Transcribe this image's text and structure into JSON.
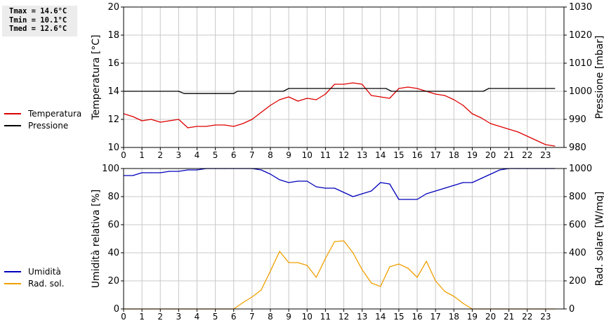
{
  "stats": {
    "tmax": "Tmax = 14.6°C",
    "tmin": "Tmin = 10.1°C",
    "tmed": "Tmed = 12.6°C"
  },
  "legend_top": [
    {
      "label": "Temperatura",
      "color": "#dd0000"
    },
    {
      "label": "Pressione",
      "color": "#000000"
    }
  ],
  "legend_bottom": [
    {
      "label": "Umidità",
      "color": "#0000bb"
    },
    {
      "label": "Rad. sol.",
      "color": "#f0a000"
    }
  ],
  "colors": {
    "grid": "#c8c8c8",
    "axis": "#000000"
  },
  "chart_data": [
    {
      "type": "line",
      "xlabel": "",
      "ylabel": "Temperatura [°C]",
      "y2label": "Pressione [mbar]",
      "xlim": [
        0,
        24
      ],
      "ylim": [
        10,
        20
      ],
      "y2lim": [
        980,
        1030
      ],
      "xticks": [
        "0",
        "1",
        "2",
        "3",
        "4",
        "5",
        "6",
        "7",
        "8",
        "9",
        "10",
        "11",
        "12",
        "13",
        "14",
        "15",
        "16",
        "17",
        "18",
        "19",
        "20",
        "21",
        "22",
        "23"
      ],
      "yticks": [
        "10",
        "12",
        "14",
        "16",
        "18",
        "20"
      ],
      "y2ticks": [
        "980",
        "990",
        "1000",
        "1010",
        "1020",
        "1030"
      ],
      "grid": true,
      "legend": "left",
      "series": [
        {
          "name": "Temperatura",
          "axis": "left",
          "color": "#dd0000",
          "points": [
            [
              0,
              12.4
            ],
            [
              0.5,
              12.2
            ],
            [
              1,
              11.9
            ],
            [
              1.5,
              12.0
            ],
            [
              2,
              11.8
            ],
            [
              2.5,
              11.9
            ],
            [
              3,
              12.0
            ],
            [
              3.5,
              11.4
            ],
            [
              4,
              11.5
            ],
            [
              4.5,
              11.5
            ],
            [
              5,
              11.6
            ],
            [
              5.5,
              11.6
            ],
            [
              6,
              11.5
            ],
            [
              6.5,
              11.7
            ],
            [
              7,
              12.0
            ],
            [
              7.5,
              12.5
            ],
            [
              8,
              13.0
            ],
            [
              8.5,
              13.4
            ],
            [
              9,
              13.6
            ],
            [
              9.5,
              13.3
            ],
            [
              10,
              13.5
            ],
            [
              10.5,
              13.4
            ],
            [
              11,
              13.8
            ],
            [
              11.5,
              14.5
            ],
            [
              12,
              14.5
            ],
            [
              12.5,
              14.6
            ],
            [
              13,
              14.5
            ],
            [
              13.5,
              13.7
            ],
            [
              14,
              13.6
            ],
            [
              14.5,
              13.5
            ],
            [
              15,
              14.2
            ],
            [
              15.5,
              14.3
            ],
            [
              16,
              14.2
            ],
            [
              16.5,
              14.0
            ],
            [
              17,
              13.8
            ],
            [
              17.5,
              13.7
            ],
            [
              18,
              13.4
            ],
            [
              18.5,
              13.0
            ],
            [
              19,
              12.4
            ],
            [
              19.5,
              12.1
            ],
            [
              20,
              11.7
            ],
            [
              20.5,
              11.5
            ],
            [
              21,
              11.3
            ],
            [
              21.5,
              11.1
            ],
            [
              22,
              10.8
            ],
            [
              22.5,
              10.5
            ],
            [
              23,
              10.2
            ],
            [
              23.5,
              10.1
            ]
          ]
        },
        {
          "name": "Pressione",
          "axis": "right",
          "color": "#000000",
          "points": [
            [
              0,
              1000
            ],
            [
              3.0,
              1000
            ],
            [
              3.3,
              999.2
            ],
            [
              6,
              999.2
            ],
            [
              6.2,
              1000
            ],
            [
              8.7,
              1000
            ],
            [
              9,
              1001
            ],
            [
              14.3,
              1001
            ],
            [
              14.6,
              1000
            ],
            [
              19.6,
              1000
            ],
            [
              19.9,
              1001
            ],
            [
              23.5,
              1001
            ]
          ]
        }
      ]
    },
    {
      "type": "line",
      "xlabel": "",
      "ylabel": "Umidità relativa [%]",
      "y2label": "Rad. solare [W/mq]",
      "xlim": [
        0,
        24
      ],
      "ylim": [
        0,
        100
      ],
      "y2lim": [
        0,
        1000
      ],
      "xticks": [
        "0",
        "1",
        "2",
        "3",
        "4",
        "5",
        "6",
        "7",
        "8",
        "9",
        "10",
        "11",
        "12",
        "13",
        "14",
        "15",
        "16",
        "17",
        "18",
        "19",
        "20",
        "21",
        "22",
        "23"
      ],
      "yticks": [
        "0",
        "20",
        "40",
        "60",
        "80",
        "100"
      ],
      "y2ticks": [
        "0",
        "200",
        "400",
        "600",
        "800",
        "1000"
      ],
      "grid": true,
      "legend": "left",
      "series": [
        {
          "name": "Umidità",
          "axis": "left",
          "color": "#0000bb",
          "points": [
            [
              0,
              95
            ],
            [
              0.5,
              95
            ],
            [
              1,
              97
            ],
            [
              1.5,
              97
            ],
            [
              2,
              97
            ],
            [
              2.5,
              98
            ],
            [
              3,
              98
            ],
            [
              3.5,
              99
            ],
            [
              4,
              99
            ],
            [
              4.5,
              100
            ],
            [
              5,
              100
            ],
            [
              5.5,
              100
            ],
            [
              6,
              100
            ],
            [
              6.5,
              100
            ],
            [
              7,
              100
            ],
            [
              7.5,
              99
            ],
            [
              8,
              96
            ],
            [
              8.5,
              92
            ],
            [
              9,
              90
            ],
            [
              9.5,
              91
            ],
            [
              10,
              91
            ],
            [
              10.5,
              87
            ],
            [
              11,
              86
            ],
            [
              11.5,
              86
            ],
            [
              12,
              83
            ],
            [
              12.5,
              80
            ],
            [
              13,
              82
            ],
            [
              13.5,
              84
            ],
            [
              14,
              90
            ],
            [
              14.5,
              89
            ],
            [
              15,
              78
            ],
            [
              15.5,
              78
            ],
            [
              16,
              78
            ],
            [
              16.5,
              82
            ],
            [
              17,
              84
            ],
            [
              17.5,
              86
            ],
            [
              18,
              88
            ],
            [
              18.5,
              90
            ],
            [
              19,
              90
            ],
            [
              19.5,
              93
            ],
            [
              20,
              96
            ],
            [
              20.5,
              99
            ],
            [
              21,
              100
            ],
            [
              21.5,
              100
            ],
            [
              22,
              100
            ],
            [
              22.5,
              100
            ],
            [
              23,
              100
            ],
            [
              23.5,
              100
            ]
          ]
        },
        {
          "name": "Rad. sol.",
          "axis": "right",
          "color": "#f0a000",
          "points": [
            [
              0,
              0
            ],
            [
              6,
              0
            ],
            [
              6.5,
              45
            ],
            [
              7,
              85
            ],
            [
              7.5,
              135
            ],
            [
              8,
              270
            ],
            [
              8.5,
              410
            ],
            [
              9,
              330
            ],
            [
              9.5,
              330
            ],
            [
              10,
              310
            ],
            [
              10.5,
              225
            ],
            [
              11,
              360
            ],
            [
              11.5,
              480
            ],
            [
              12,
              485
            ],
            [
              12.5,
              400
            ],
            [
              13,
              280
            ],
            [
              13.5,
              185
            ],
            [
              14,
              160
            ],
            [
              14.5,
              300
            ],
            [
              15,
              320
            ],
            [
              15.5,
              290
            ],
            [
              16,
              225
            ],
            [
              16.5,
              340
            ],
            [
              17,
              200
            ],
            [
              17.5,
              125
            ],
            [
              18,
              90
            ],
            [
              18.5,
              40
            ],
            [
              19,
              0
            ],
            [
              23.5,
              0
            ]
          ]
        }
      ]
    }
  ]
}
